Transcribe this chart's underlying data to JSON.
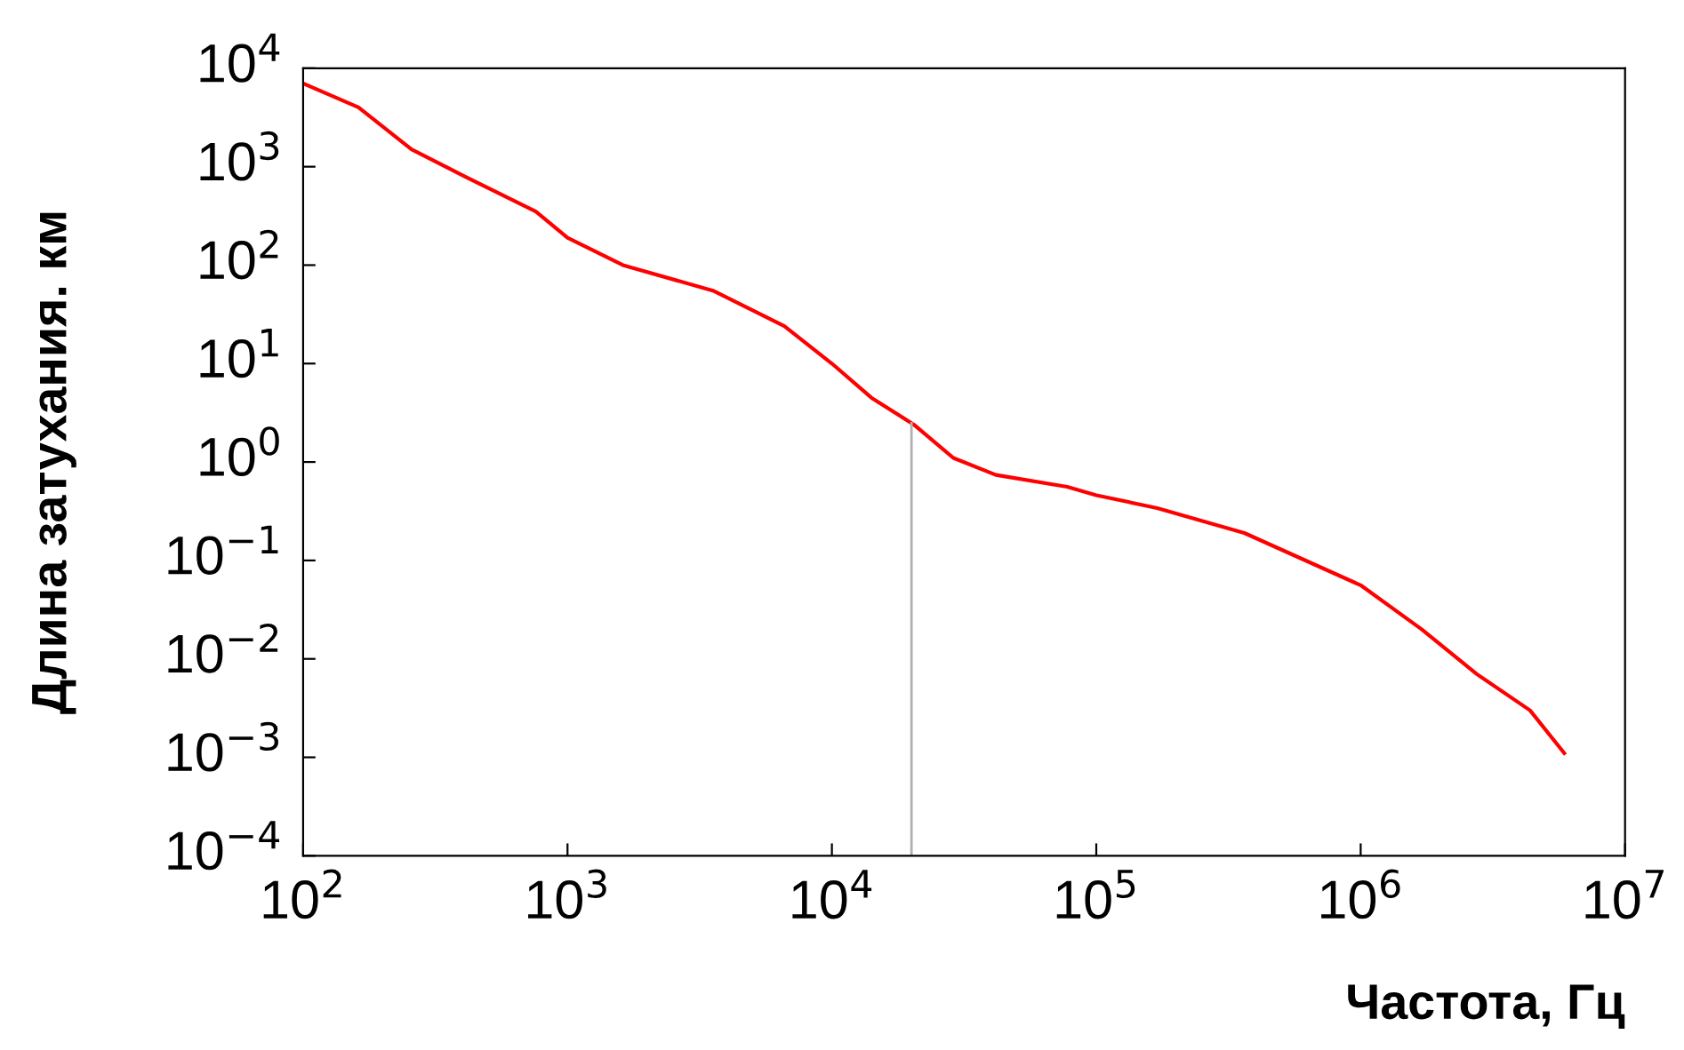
{
  "chart_data": {
    "type": "line",
    "xlabel": "Частота, Гц",
    "ylabel": "Длина затухания. км",
    "log": "xy",
    "grid": false,
    "legend": false,
    "series": [
      {
        "color": "#ff0000",
        "x": [
          100,
          162,
          257,
          407,
          759,
          1000,
          1620,
          3550,
          6610,
          10000,
          14100,
          20400,
          28800,
          41700,
          77600,
          100000,
          170000,
          363000,
          1000000,
          1700000,
          2750000,
          4370000,
          5890000
        ],
        "values": [
          7000,
          4000,
          1500,
          800,
          350,
          190,
          100,
          55,
          24,
          10,
          4.5,
          2.4,
          1.1,
          0.74,
          0.56,
          0.46,
          0.34,
          0.19,
          0.056,
          0.02,
          0.007,
          0.003,
          0.0011
        ]
      }
    ],
    "ref_lines": [
      {
        "axis": "x",
        "value": 20000,
        "color": "#b0b0b0"
      }
    ],
    "xlim": [
      100,
      10000000
    ],
    "ylim": [
      0.0001,
      10000
    ],
    "xticks": [
      {
        "value": 100,
        "label": "10$^{2}$"
      },
      {
        "value": 1000,
        "label": "10$^{3}$"
      },
      {
        "value": 10000,
        "label": "10$^{4}$"
      },
      {
        "value": 100000,
        "label": "10$^{5}$"
      },
      {
        "value": 1000000,
        "label": "10$^{6}$"
      },
      {
        "value": 10000000,
        "label": "10$^{7}$"
      }
    ],
    "yticks": [
      {
        "value": 0.0001,
        "label": "10$^{−4}$"
      },
      {
        "value": 0.001,
        "label": "10$^{−3}$"
      },
      {
        "value": 0.01,
        "label": "10$^{−2}$"
      },
      {
        "value": 0.1,
        "label": "10$^{−1}$"
      },
      {
        "value": 1,
        "label": "10$^{0}$"
      },
      {
        "value": 10,
        "label": "10$^{1}$"
      },
      {
        "value": 100,
        "label": "10$^{2}$"
      },
      {
        "value": 1000,
        "label": "10$^{3}$"
      },
      {
        "value": 10000,
        "label": "10$^{4}$"
      }
    ]
  }
}
